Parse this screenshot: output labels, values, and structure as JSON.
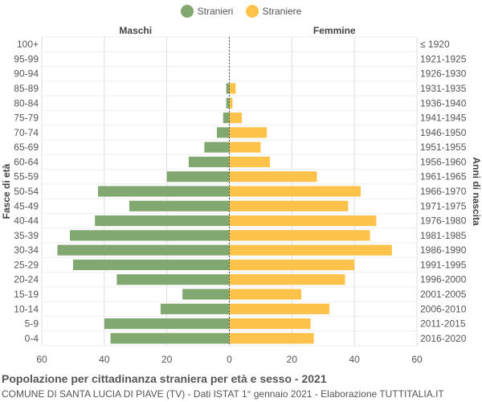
{
  "legend": [
    {
      "label": "Stranieri",
      "color": "#82a872"
    },
    {
      "label": "Straniere",
      "color": "#fcc24a"
    }
  ],
  "footer": {
    "title": "Popolazione per cittadinanza straniera per età e sesso - 2021",
    "subtitle": "COMUNE DI SANTA LUCIA DI PIAVE (TV) - Dati ISTAT 1° gennaio 2021 - Elaborazione TUTTITALIA.IT"
  },
  "chart_data": {
    "type": "bar",
    "orientation": "horizontal",
    "left_header": "Maschi",
    "right_header": "Femmine",
    "ylabel_left": "Fasce di età",
    "ylabel_right": "Anni di nascita",
    "xlim": [
      -60,
      60
    ],
    "xticks": [
      "60",
      "40",
      "20",
      "0",
      "20",
      "40",
      "60"
    ],
    "grid": true,
    "legend_position": "top-center",
    "categories": [
      "100+",
      "95-99",
      "90-94",
      "85-89",
      "80-84",
      "75-79",
      "70-74",
      "65-69",
      "60-64",
      "55-59",
      "50-54",
      "45-49",
      "40-44",
      "35-39",
      "30-34",
      "25-29",
      "20-24",
      "15-19",
      "10-14",
      "5-9",
      "0-4"
    ],
    "birth_years": [
      "≤ 1920",
      "1921-1925",
      "1926-1930",
      "1931-1935",
      "1936-1940",
      "1941-1945",
      "1946-1950",
      "1951-1955",
      "1956-1960",
      "1961-1965",
      "1966-1970",
      "1971-1975",
      "1976-1980",
      "1981-1985",
      "1986-1990",
      "1991-1995",
      "1996-2000",
      "2001-2005",
      "2006-2010",
      "2011-2015",
      "2016-2020"
    ],
    "series": [
      {
        "name": "Stranieri",
        "color": "#82a872",
        "values": [
          0,
          0,
          0,
          1,
          1,
          2,
          4,
          8,
          13,
          20,
          42,
          32,
          43,
          51,
          55,
          50,
          36,
          15,
          22,
          40,
          38
        ]
      },
      {
        "name": "Straniere",
        "color": "#fcc24a",
        "values": [
          0,
          0,
          0,
          2,
          1,
          4,
          12,
          10,
          13,
          28,
          42,
          38,
          47,
          45,
          52,
          40,
          37,
          23,
          32,
          26,
          27
        ]
      }
    ]
  }
}
